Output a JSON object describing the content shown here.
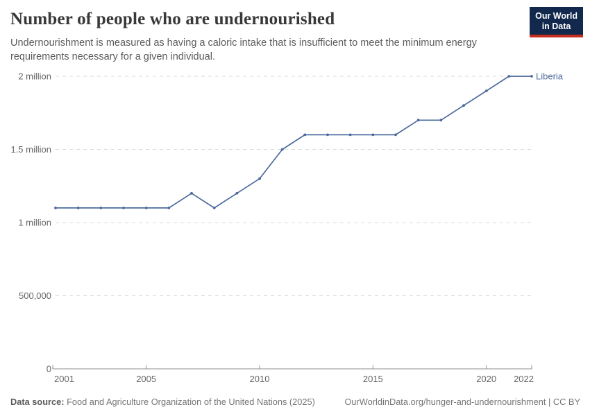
{
  "header": {
    "title": "Number of people who are undernourished",
    "subtitle": "Undernourishment is measured as having a caloric intake that is insufficient to meet the minimum energy requirements necessary for a given individual.",
    "logo_line1": "Our World",
    "logo_line2": "in Data"
  },
  "chart_data": {
    "type": "line",
    "title": "Number of people who are undernourished",
    "entity": "Liberia",
    "x": [
      2001,
      2002,
      2003,
      2004,
      2005,
      2006,
      2007,
      2008,
      2009,
      2010,
      2011,
      2012,
      2013,
      2014,
      2015,
      2016,
      2017,
      2018,
      2019,
      2020,
      2021,
      2022
    ],
    "series": [
      {
        "name": "Liberia",
        "color": "#4C6A9C",
        "values": [
          1100000,
          1100000,
          1100000,
          1100000,
          1100000,
          1100000,
          1200000,
          1100000,
          1200000,
          1300000,
          1500000,
          1600000,
          1600000,
          1600000,
          1600000,
          1600000,
          1700000,
          1700000,
          1800000,
          1900000,
          2000000,
          2000000
        ]
      }
    ],
    "xlim": [
      2001,
      2022
    ],
    "ylim": [
      0,
      2000000
    ],
    "x_ticks": [
      2001,
      2005,
      2010,
      2015,
      2020,
      2022
    ],
    "y_ticks": [
      {
        "value": 0,
        "label": "0"
      },
      {
        "value": 500000,
        "label": "500,000"
      },
      {
        "value": 1000000,
        "label": "1 million"
      },
      {
        "value": 1500000,
        "label": "1.5 million"
      },
      {
        "value": 2000000,
        "label": "2 million"
      }
    ],
    "grid": "horizontal-dashed",
    "legend_position": "end-of-line",
    "markers": true
  },
  "footer": {
    "datasource_label": "Data source:",
    "datasource_text": " Food and Agriculture Organization of the United Nations (2025)",
    "link_text": "OurWorldinData.org/hunger-and-undernourishment | CC BY"
  },
  "colors": {
    "line": "#4C6A9C",
    "grid": "#dadada",
    "axis": "#8c8c8c",
    "axis_text": "#666666",
    "title_text": "#383838",
    "subtitle_text": "#5b5b5b",
    "logo_navy": "#12294d",
    "logo_red": "#c62d1c"
  }
}
